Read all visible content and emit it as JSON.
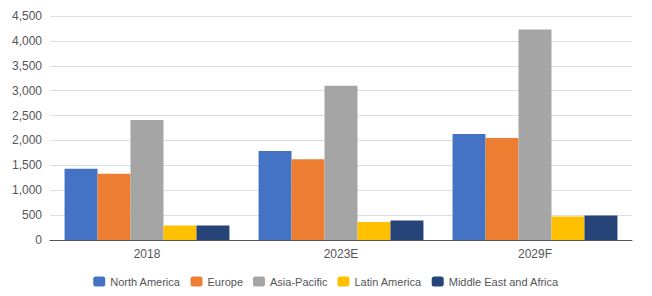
{
  "chart_data": {
    "type": "bar",
    "categories": [
      "2018",
      "2023E",
      "2029F"
    ],
    "series": [
      {
        "name": "North America",
        "color": "#4472C4",
        "values": [
          1430,
          1790,
          2130
        ]
      },
      {
        "name": "Europe",
        "color": "#ED7D31",
        "values": [
          1330,
          1620,
          2050
        ]
      },
      {
        "name": "Asia-Pacific",
        "color": "#A5A5A5",
        "values": [
          2410,
          3100,
          4230
        ]
      },
      {
        "name": "Latin America",
        "color": "#FFC000",
        "values": [
          290,
          360,
          470
        ]
      },
      {
        "name": "Middle East and Africa",
        "color": "#264478",
        "values": [
          290,
          390,
          490
        ]
      }
    ],
    "ylim": [
      0,
      4500
    ],
    "yticks": [
      0,
      500,
      {
        "value": 1000,
        "label": "1,000"
      },
      {
        "value": 1500,
        "label": "1,500"
      },
      {
        "value": 2000,
        "label": "2,000"
      },
      {
        "value": 2500,
        "label": "2,500"
      },
      {
        "value": 3000,
        "label": "3,000"
      },
      {
        "value": 3500,
        "label": "3,500"
      },
      {
        "value": 4000,
        "label": "4,000"
      },
      {
        "value": 4500,
        "label": "4,500"
      }
    ],
    "grid": true,
    "legend": "bottom"
  }
}
